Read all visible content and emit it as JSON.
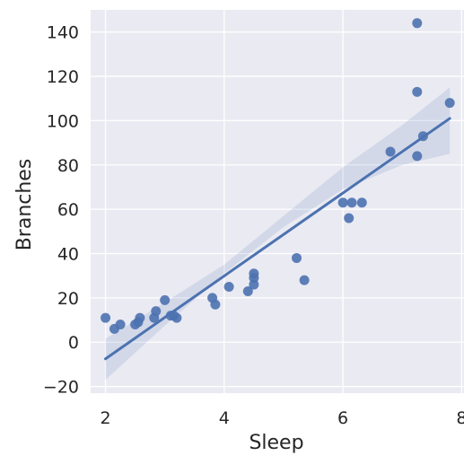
{
  "chart_data": {
    "type": "scatter",
    "title": "",
    "xlabel": "Sleep",
    "ylabel": "Branches",
    "xlim": [
      1.75,
      8.1
    ],
    "ylim": [
      -23,
      150
    ],
    "xticks": [
      2,
      4,
      6,
      8
    ],
    "yticks": [
      -20,
      0,
      20,
      40,
      60,
      80,
      100,
      120,
      140
    ],
    "xtick_labels": [
      "2",
      "4",
      "6",
      "8"
    ],
    "ytick_labels": [
      "−20",
      "0",
      "20",
      "40",
      "60",
      "80",
      "100",
      "120",
      "140"
    ],
    "grid": true,
    "style": {
      "background": "#eaeaf2",
      "grid_color": "#ffffff",
      "point_color": "#4c72b0",
      "line_color": "#4c72b0",
      "band_color": "#4c72b0"
    },
    "points": [
      {
        "x": 2.0,
        "y": 11
      },
      {
        "x": 2.15,
        "y": 6
      },
      {
        "x": 2.25,
        "y": 8
      },
      {
        "x": 2.5,
        "y": 8
      },
      {
        "x": 2.55,
        "y": 9
      },
      {
        "x": 2.58,
        "y": 11
      },
      {
        "x": 2.82,
        "y": 11
      },
      {
        "x": 2.85,
        "y": 14
      },
      {
        "x": 3.0,
        "y": 19
      },
      {
        "x": 3.1,
        "y": 12
      },
      {
        "x": 3.15,
        "y": 12
      },
      {
        "x": 3.2,
        "y": 11
      },
      {
        "x": 3.8,
        "y": 20
      },
      {
        "x": 3.85,
        "y": 17
      },
      {
        "x": 4.08,
        "y": 25
      },
      {
        "x": 4.4,
        "y": 23
      },
      {
        "x": 4.5,
        "y": 26
      },
      {
        "x": 4.5,
        "y": 29
      },
      {
        "x": 4.5,
        "y": 31
      },
      {
        "x": 5.22,
        "y": 38
      },
      {
        "x": 5.35,
        "y": 28
      },
      {
        "x": 6.0,
        "y": 63
      },
      {
        "x": 6.1,
        "y": 56
      },
      {
        "x": 6.15,
        "y": 63
      },
      {
        "x": 6.32,
        "y": 63
      },
      {
        "x": 6.8,
        "y": 86
      },
      {
        "x": 7.25,
        "y": 144
      },
      {
        "x": 7.25,
        "y": 113
      },
      {
        "x": 7.25,
        "y": 84
      },
      {
        "x": 7.35,
        "y": 93
      },
      {
        "x": 7.8,
        "y": 108
      }
    ],
    "regression": {
      "x": [
        2.0,
        7.8
      ],
      "y": [
        -7.5,
        101.0
      ]
    },
    "confidence_band": {
      "x": [
        2.0,
        3.0,
        4.0,
        5.0,
        6.0,
        7.0,
        7.8
      ],
      "lower": [
        -17.0,
        7.5,
        31.0,
        52.0,
        69.0,
        80.0,
        85.0
      ],
      "upper": [
        1.5,
        18.0,
        35.0,
        57.0,
        79.0,
        98.0,
        115.0
      ]
    }
  }
}
